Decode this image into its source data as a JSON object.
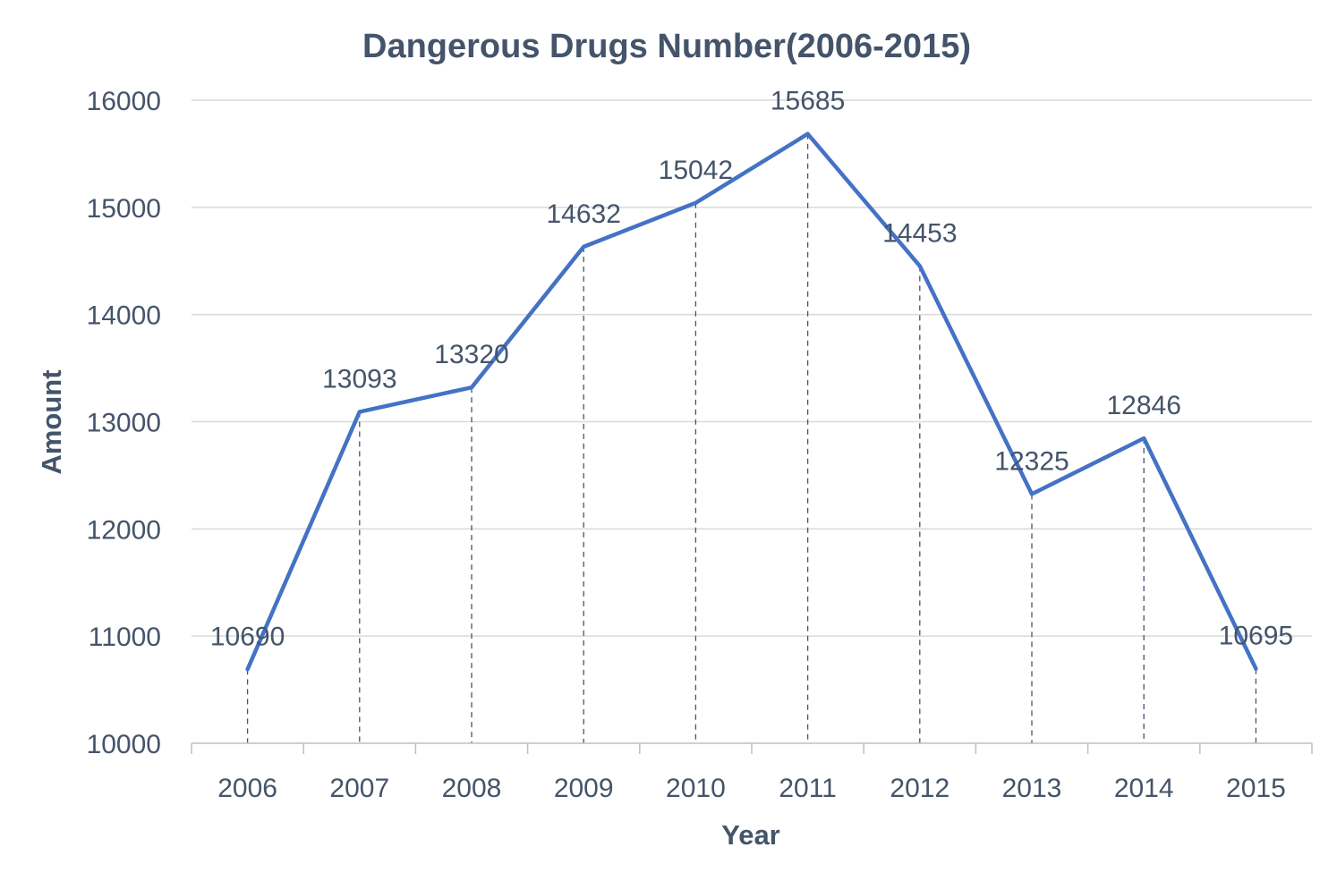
{
  "colors": {
    "line": "#4472C4",
    "text": "#44546A",
    "grid": "#D9D9D9",
    "axis": "#BFBFBF",
    "drop": "#44546A"
  },
  "chart_data": {
    "type": "line",
    "title": "Dangerous Drugs Number(2006-2015)",
    "xlabel": "Year",
    "ylabel": "Amount",
    "categories": [
      "2006",
      "2007",
      "2008",
      "2009",
      "2010",
      "2011",
      "2012",
      "2013",
      "2014",
      "2015"
    ],
    "series": [
      {
        "values": [
          10690,
          13093,
          13320,
          14632,
          15042,
          15685,
          14453,
          12325,
          12846,
          10695
        ]
      }
    ],
    "ylim": [
      10000,
      16000
    ],
    "yticks": [
      10000,
      11000,
      12000,
      13000,
      14000,
      15000,
      16000
    ],
    "grid": true,
    "legend": "none",
    "data_labels": true,
    "drop_lines": true
  }
}
